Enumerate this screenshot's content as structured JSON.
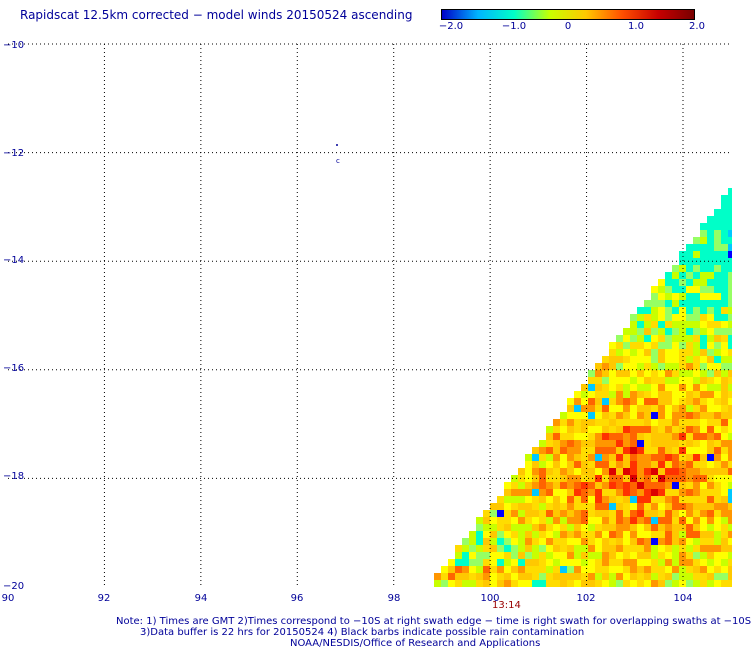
{
  "title": "Rapidscat 12.5km corrected − model winds 20150524 ascending",
  "colorbar": {
    "labels": [
      "−2.0",
      "−1.0",
      "0",
      "1.0",
      "2.0"
    ],
    "colors": [
      "#0000c8",
      "#00b4ff",
      "#00ffc8",
      "#c8ff00",
      "#ffc800",
      "#ff5000",
      "#c80000",
      "#780000"
    ]
  },
  "map": {
    "lon_labels": [
      "90",
      "92",
      "94",
      "96",
      "98",
      "100",
      "102",
      "104"
    ],
    "lat_labels": [
      "−10",
      "−12",
      "−14",
      "−16",
      "−18",
      "−20"
    ],
    "lon_range": [
      90,
      105
    ],
    "lat_range": [
      -20,
      -10
    ],
    "grid_color": "#000000",
    "swath_time": "13:14"
  },
  "notes": {
    "line1": "Note:  1) Times are GMT 2)Times correspond to −10S at right swath edge − time is right swath for overlapping swaths at −10S",
    "line2": "3)Data buffer is 22 hrs for 20150524  4) Black barbs indicate possible rain contamination",
    "line3": "NOAA/NESDIS/Office of Research and Applications"
  }
}
